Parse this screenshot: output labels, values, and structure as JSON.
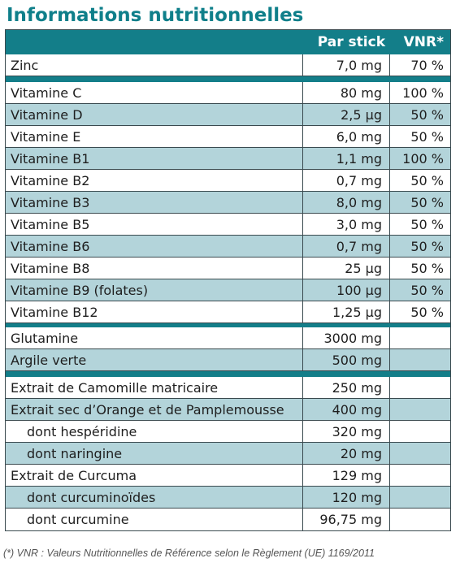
{
  "title": "Informations nutritionnelles",
  "columns": {
    "name": "",
    "per_stick": "Par stick",
    "vnr": "VNR*"
  },
  "groups": [
    [
      {
        "name": "Zinc",
        "amount": "7,0 mg",
        "vnr": "70 %"
      }
    ],
    [
      {
        "name": "Vitamine C",
        "amount": "80 mg",
        "vnr": "100 %"
      },
      {
        "name": "Vitamine D",
        "amount": "2,5 µg",
        "vnr": "50 %"
      },
      {
        "name": "Vitamine E",
        "amount": "6,0 mg",
        "vnr": "50 %"
      },
      {
        "name": "Vitamine B1",
        "amount": "1,1 mg",
        "vnr": "100 %"
      },
      {
        "name": "Vitamine B2",
        "amount": "0,7 mg",
        "vnr": "50 %"
      },
      {
        "name": "Vitamine B3",
        "amount": "8,0 mg",
        "vnr": "50 %"
      },
      {
        "name": "Vitamine B5",
        "amount": "3,0 mg",
        "vnr": "50 %"
      },
      {
        "name": "Vitamine B6",
        "amount": "0,7 mg",
        "vnr": "50 %"
      },
      {
        "name": "Vitamine B8",
        "amount": "25 µg",
        "vnr": "50 %"
      },
      {
        "name": "Vitamine B9 (folates)",
        "amount": "100 µg",
        "vnr": "50 %"
      },
      {
        "name": "Vitamine B12",
        "amount": "1,25 µg",
        "vnr": "50 %"
      }
    ],
    [
      {
        "name": "Glutamine",
        "amount": "3000 mg",
        "vnr": ""
      },
      {
        "name": "Argile verte",
        "amount": "500 mg",
        "vnr": ""
      }
    ],
    [
      {
        "name": "Extrait de Camomille matricaire",
        "amount": "250 mg",
        "vnr": ""
      },
      {
        "name": "Extrait sec d’Orange et de Pamplemousse",
        "amount": "400 mg",
        "vnr": ""
      },
      {
        "name": "dont hespéridine",
        "amount": "320 mg",
        "vnr": "",
        "indent": true
      },
      {
        "name": "dont naringine",
        "amount": "20 mg",
        "vnr": "",
        "indent": true
      },
      {
        "name": "Extrait de Curcuma",
        "amount": "129 mg",
        "vnr": ""
      },
      {
        "name": "dont curcuminoïdes",
        "amount": "120 mg",
        "vnr": "",
        "indent": true
      },
      {
        "name": "dont curcumine",
        "amount": "96,75 mg",
        "vnr": "",
        "indent": true
      }
    ]
  ],
  "footnote": "(*) VNR : Valeurs Nutritionnelles de Référence selon le Règlement (UE) 1169/2011",
  "colors": {
    "accent": "#137e89",
    "title": "#0f7f8a",
    "row_alt": "#b3d4da"
  }
}
